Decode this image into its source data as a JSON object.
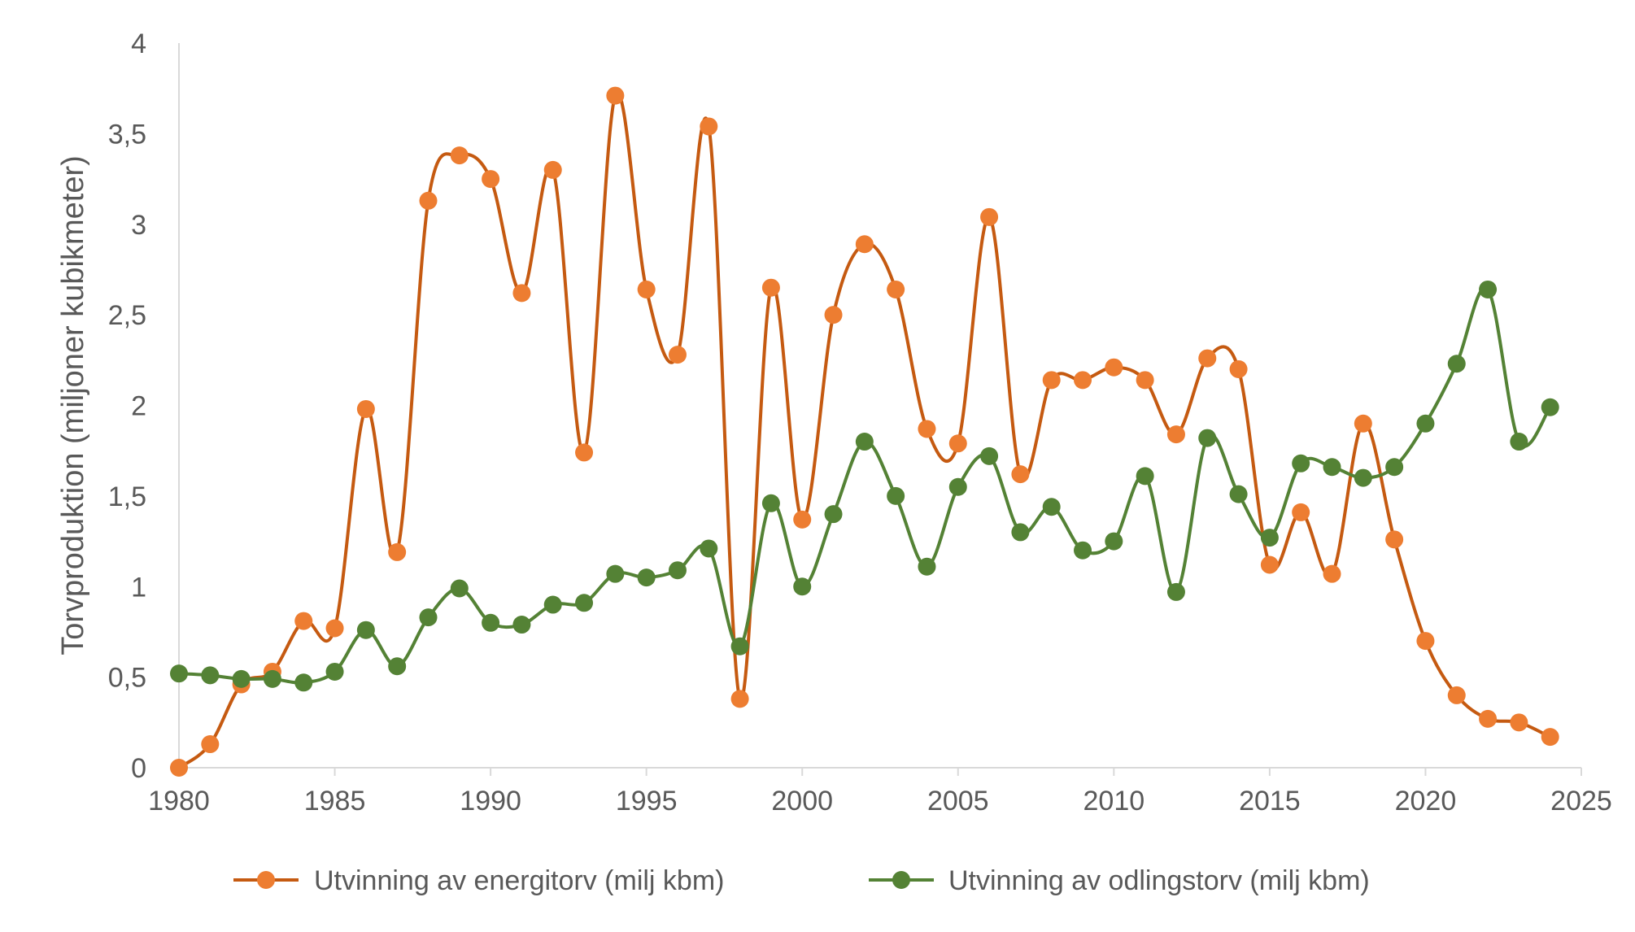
{
  "chart_data": {
    "type": "line",
    "title": "",
    "xlabel": "",
    "ylabel": "Torvproduktion (miljoner kubikmeter)",
    "xlim": [
      1980,
      2025
    ],
    "ylim": [
      0,
      4
    ],
    "x_ticks": [
      1980,
      1985,
      1990,
      1995,
      2000,
      2005,
      2010,
      2015,
      2020,
      2025
    ],
    "x_tick_labels": [
      "1980",
      "1985",
      "1990",
      "1995",
      "2000",
      "2005",
      "2010",
      "2015",
      "2020",
      "2025"
    ],
    "y_ticks": [
      0,
      0.5,
      1,
      1.5,
      2,
      2.5,
      3,
      3.5,
      4
    ],
    "y_tick_labels": [
      "0",
      "0,5",
      "1",
      "1,5",
      "2",
      "2,5",
      "3",
      "3,5",
      "4"
    ],
    "grid": false,
    "legend_position": "bottom",
    "x": [
      1980,
      1981,
      1982,
      1983,
      1984,
      1985,
      1986,
      1987,
      1988,
      1989,
      1990,
      1991,
      1992,
      1993,
      1994,
      1995,
      1996,
      1997,
      1998,
      1999,
      2000,
      2001,
      2002,
      2003,
      2004,
      2005,
      2006,
      2007,
      2008,
      2009,
      2010,
      2011,
      2012,
      2013,
      2014,
      2015,
      2016,
      2017,
      2018,
      2019,
      2020,
      2021,
      2022,
      2023,
      2024
    ],
    "series": [
      {
        "name": "Utvinning av energitorv (milj kbm)",
        "color": "#ED7D31",
        "line_color": "#C55A11",
        "values": [
          0.0,
          0.13,
          0.46,
          0.53,
          0.81,
          0.77,
          1.98,
          1.19,
          3.13,
          3.38,
          3.25,
          2.62,
          3.3,
          1.74,
          3.71,
          2.64,
          2.28,
          3.54,
          0.38,
          2.65,
          1.37,
          2.5,
          2.89,
          2.64,
          1.87,
          1.79,
          3.04,
          1.62,
          2.14,
          2.14,
          2.21,
          2.14,
          1.84,
          2.26,
          2.2,
          1.12,
          1.41,
          1.07,
          1.9,
          1.26,
          0.7,
          0.4,
          0.27,
          0.25,
          0.17
        ]
      },
      {
        "name": "Utvinning av odlingstorv (milj kbm)",
        "color": "#548235",
        "line_color": "#548235",
        "values": [
          0.52,
          0.51,
          0.49,
          0.49,
          0.47,
          0.53,
          0.76,
          0.56,
          0.83,
          0.99,
          0.8,
          0.79,
          0.9,
          0.91,
          1.07,
          1.05,
          1.09,
          1.21,
          0.67,
          1.46,
          1.0,
          1.4,
          1.8,
          1.5,
          1.11,
          1.55,
          1.72,
          1.3,
          1.44,
          1.2,
          1.25,
          1.61,
          0.97,
          1.82,
          1.51,
          1.27,
          1.68,
          1.66,
          1.6,
          1.66,
          1.9,
          2.23,
          2.64,
          1.8,
          1.99
        ]
      }
    ]
  }
}
